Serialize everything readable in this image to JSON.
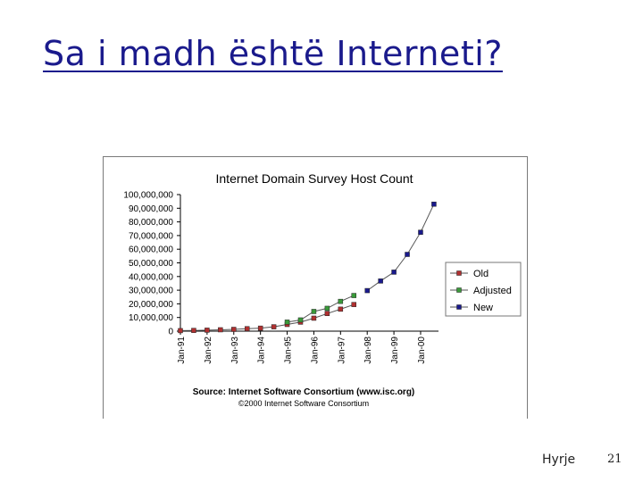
{
  "slide": {
    "title": "Sa i madh është Interneti?",
    "footer_label": "Hyrje",
    "page_number": "21"
  },
  "chart_data": {
    "type": "line",
    "title": "Internet Domain Survey Host Count",
    "source": "Source: Internet Software Consortium (www.isc.org)",
    "copyright": "©2000 Internet Software Consortium",
    "ylim": [
      0,
      100000000
    ],
    "y_ticks": [
      "0",
      "10,000,000",
      "20,000,000",
      "30,000,000",
      "40,000,000",
      "50,000,000",
      "60,000,000",
      "70,000,000",
      "80,000,000",
      "90,000,000",
      "100,000,000"
    ],
    "x_ticks": [
      "Jan-91",
      "Jan-92",
      "Jan-93",
      "Jan-94",
      "Jan-95",
      "Jan-96",
      "Jan-97",
      "Jan-98",
      "Jan-99",
      "Jan-00"
    ],
    "xlim": [
      1991,
      2000.67
    ],
    "legend_position": "right",
    "grid": false,
    "series": [
      {
        "name": "Old",
        "color": "#b03030",
        "points": [
          [
            1991.0,
            380000
          ],
          [
            1991.5,
            540000
          ],
          [
            1992.0,
            720000
          ],
          [
            1992.5,
            1000000
          ],
          [
            1993.0,
            1300000
          ],
          [
            1993.5,
            1800000
          ],
          [
            1994.0,
            2200000
          ],
          [
            1994.5,
            3200000
          ],
          [
            1995.0,
            4900000
          ],
          [
            1995.5,
            6600000
          ],
          [
            1996.0,
            9500000
          ],
          [
            1996.5,
            12900000
          ],
          [
            1997.0,
            16100000
          ],
          [
            1997.5,
            19500000
          ]
        ]
      },
      {
        "name": "Adjusted",
        "color": "#3a9a3a",
        "points": [
          [
            1995.0,
            6600000
          ],
          [
            1995.5,
            8200000
          ],
          [
            1996.0,
            14400000
          ],
          [
            1996.5,
            16700000
          ],
          [
            1997.0,
            21800000
          ],
          [
            1997.5,
            26100000
          ]
        ]
      },
      {
        "name": "New",
        "color": "#1a1a8c",
        "points": [
          [
            1998.0,
            29700000
          ],
          [
            1998.5,
            36700000
          ],
          [
            1999.0,
            43200000
          ],
          [
            1999.5,
            56200000
          ],
          [
            2000.0,
            72400000
          ],
          [
            2000.5,
            93000000
          ]
        ]
      }
    ]
  }
}
